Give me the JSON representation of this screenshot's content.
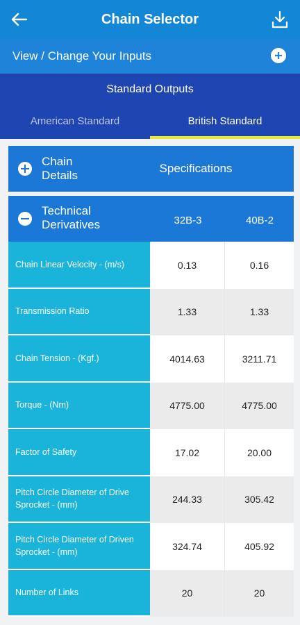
{
  "header": {
    "title": "Chain Selector",
    "back_icon": "back-arrow-icon",
    "download_icon": "download-icon"
  },
  "inputs_bar": {
    "label": "View / Change Your Inputs",
    "icon": "plus-circle-icon"
  },
  "outputs": {
    "title": "Standard Outputs",
    "tabs": [
      {
        "label": "American Standard",
        "active": false
      },
      {
        "label": "British Standard",
        "active": true
      }
    ]
  },
  "chain_details": {
    "label_line1": "Chain",
    "label_line2": "Details",
    "specifications": "Specifications"
  },
  "technical": {
    "label_line1": "Technical",
    "label_line2": "Derivatives",
    "columns": [
      "32B-3",
      "40B-2"
    ]
  },
  "rows": [
    {
      "line1": "Chain Linear Velocity - (m/s)",
      "line2": "",
      "v1": "0.13",
      "v2": "0.16"
    },
    {
      "line1": "Transmission Ratio",
      "line2": "",
      "v1": "1.33",
      "v2": "1.33"
    },
    {
      "line1": "Chain Tension - (Kgf.)",
      "line2": "",
      "v1": "4014.63",
      "v2": "3211.71"
    },
    {
      "line1": "Torque - (Nm)",
      "line2": "",
      "v1": "4775.00",
      "v2": "4775.00"
    },
    {
      "line1": "Factor of Safety",
      "line2": "",
      "v1": "17.02",
      "v2": "20.00"
    },
    {
      "line1": "Pitch Circle Diameter of Drive",
      "line2": "Sprocket - (mm)",
      "v1": "244.33",
      "v2": "305.42"
    },
    {
      "line1": "Pitch Circle Diameter of Driven",
      "line2": "Sprocket - (mm)",
      "v1": "324.74",
      "v2": "405.92"
    },
    {
      "line1": "Number of Links",
      "line2": "",
      "v1": "20",
      "v2": "20"
    }
  ],
  "colors": {
    "header": "#1387d6",
    "outputs": "#1f45b3",
    "section": "#1b78d6",
    "row_label": "#1ab3da",
    "tab_underline": "#e8e832"
  }
}
